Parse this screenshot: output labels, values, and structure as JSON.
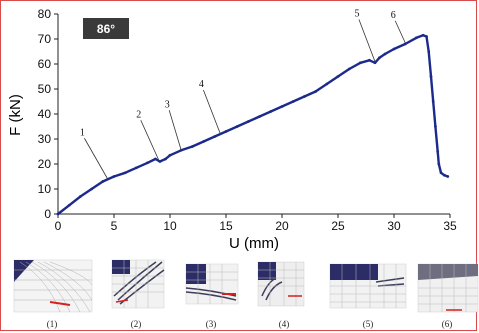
{
  "chart_data": {
    "type": "line",
    "title": "",
    "badge": "86°",
    "xlabel": "U (mm)",
    "ylabel": "F (kN)",
    "xlim": [
      0,
      35
    ],
    "ylim": [
      0,
      80
    ],
    "xticks": [
      "0",
      "5",
      "10",
      "15",
      "20",
      "25",
      "30",
      "35"
    ],
    "yticks": [
      "0",
      "10",
      "20",
      "30",
      "40",
      "50",
      "60",
      "70",
      "80"
    ],
    "grid": false,
    "series": [
      {
        "color": "#1c2a8c",
        "x": [
          0,
          1,
          2,
          3,
          4,
          5,
          6,
          7,
          8,
          8.7,
          9.1,
          9.6,
          10,
          11,
          12,
          13,
          14,
          15,
          16,
          17,
          18,
          19,
          20,
          21,
          22,
          23,
          24,
          25,
          26,
          27,
          27.8,
          28.3,
          28.7,
          29.2,
          30,
          31,
          32,
          32.6,
          32.9,
          33.1,
          33.3,
          33.5,
          33.7,
          33.9,
          34.0,
          34.2,
          34.5,
          34.8
        ],
        "y": [
          0,
          3.5,
          7,
          10,
          13,
          15,
          16.5,
          18.5,
          20.5,
          22,
          21,
          22,
          23.5,
          25.5,
          27,
          29,
          31,
          33,
          35,
          37,
          39,
          41,
          43,
          45,
          47,
          49,
          52,
          55,
          58,
          60.5,
          61.5,
          60.5,
          62.5,
          64,
          66,
          68,
          70.5,
          71.5,
          71,
          65,
          55,
          45,
          35,
          25,
          20,
          16.5,
          15.5,
          15
        ]
      }
    ],
    "annotations": [
      {
        "label": "1",
        "x": 4.5,
        "y": 13.5
      },
      {
        "label": "2",
        "x": 9,
        "y": 21.5
      },
      {
        "label": "3",
        "x": 11,
        "y": 25.5
      },
      {
        "label": "4",
        "x": 14.5,
        "y": 32
      },
      {
        "label": "5",
        "x": 28.3,
        "y": 61
      },
      {
        "label": "6",
        "x": 31,
        "y": 68.5
      }
    ]
  },
  "panels": {
    "captions": [
      "(1)",
      "(2)",
      "(3)",
      "(4)",
      "(5)",
      "(6)"
    ]
  }
}
